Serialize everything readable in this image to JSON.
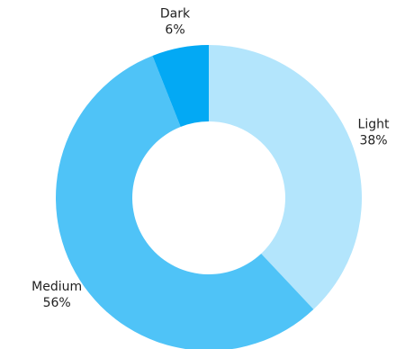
{
  "chart_data": {
    "type": "pie",
    "variant": "donut",
    "slices": [
      {
        "label": "Light",
        "value": 38,
        "value_label": "38%",
        "color": "#b3e5fc"
      },
      {
        "label": "Medium",
        "value": 56,
        "value_label": "56%",
        "color": "#4fc3f7"
      },
      {
        "label": "Dark",
        "value": 6,
        "value_label": "6%",
        "color": "#03a9f4"
      }
    ],
    "start_angle_deg": 0,
    "direction": "clockwise",
    "legend": "none",
    "title": ""
  }
}
